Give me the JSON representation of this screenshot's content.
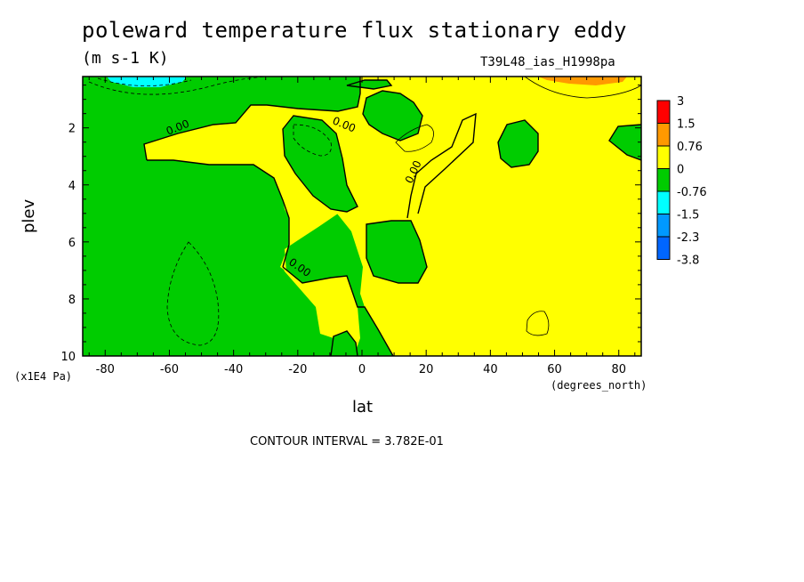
{
  "chart_data": {
    "type": "heatmap",
    "title": "poleward temperature flux stationary eddy",
    "subtitle": "(m s-1 K)",
    "run_id": "T39L48_ias_H1998pa",
    "xlabel": "lat",
    "ylabel": "plev",
    "x_unit": "(degrees_north)",
    "y_unit": "(x1E4 Pa)",
    "xlim": [
      -87,
      87
    ],
    "ylim": [
      10,
      0.2
    ],
    "x_ticks": [
      -80,
      -60,
      -40,
      -20,
      0,
      20,
      40,
      60,
      80
    ],
    "x_tick_labels": [
      "-80",
      "-60",
      "-40",
      "-20",
      "0",
      "20",
      "40",
      "60",
      "80"
    ],
    "y_ticks": [
      2,
      4,
      6,
      8,
      10
    ],
    "y_tick_labels": [
      "2",
      "4",
      "6",
      "8",
      "10"
    ],
    "contour_interval_text": "CONTOUR INTERVAL = 3.782E-01",
    "contour_labels": [
      {
        "text": "0.00",
        "lat": -57,
        "plev": 2.1
      },
      {
        "text": "0.00",
        "lat": -6,
        "plev": 2.0
      },
      {
        "text": "0.00",
        "lat": 17,
        "plev": 3.6
      },
      {
        "text": "0.00",
        "lat": -20,
        "plev": 7.0
      }
    ],
    "colorbar": {
      "levels": [
        "3",
        "1.5",
        "0.76",
        "0",
        "-0.76",
        "-1.5",
        "-2.3",
        "-3.8"
      ],
      "colors": [
        "#ff0000",
        "#ff9900",
        "#ffff00",
        "#00cc00",
        "#00ffff",
        "#0099ff",
        "#0066ff"
      ]
    },
    "regions": [
      {
        "name": "positive",
        "range": "0 to 0.76",
        "color": "#ffff00"
      },
      {
        "name": "negative",
        "range": "-0.76 to 0",
        "color": "#00cc00"
      },
      {
        "name": "strong-negative",
        "range": "-1.5 to -0.76",
        "color": "#00ffff",
        "location": "lat -80 to -60, plev < 0.5"
      },
      {
        "name": "strong-positive",
        "range": "0.76 to 1.5",
        "color": "#ff9900",
        "location": "lat 60 to 80, plev < 0.3"
      }
    ]
  }
}
